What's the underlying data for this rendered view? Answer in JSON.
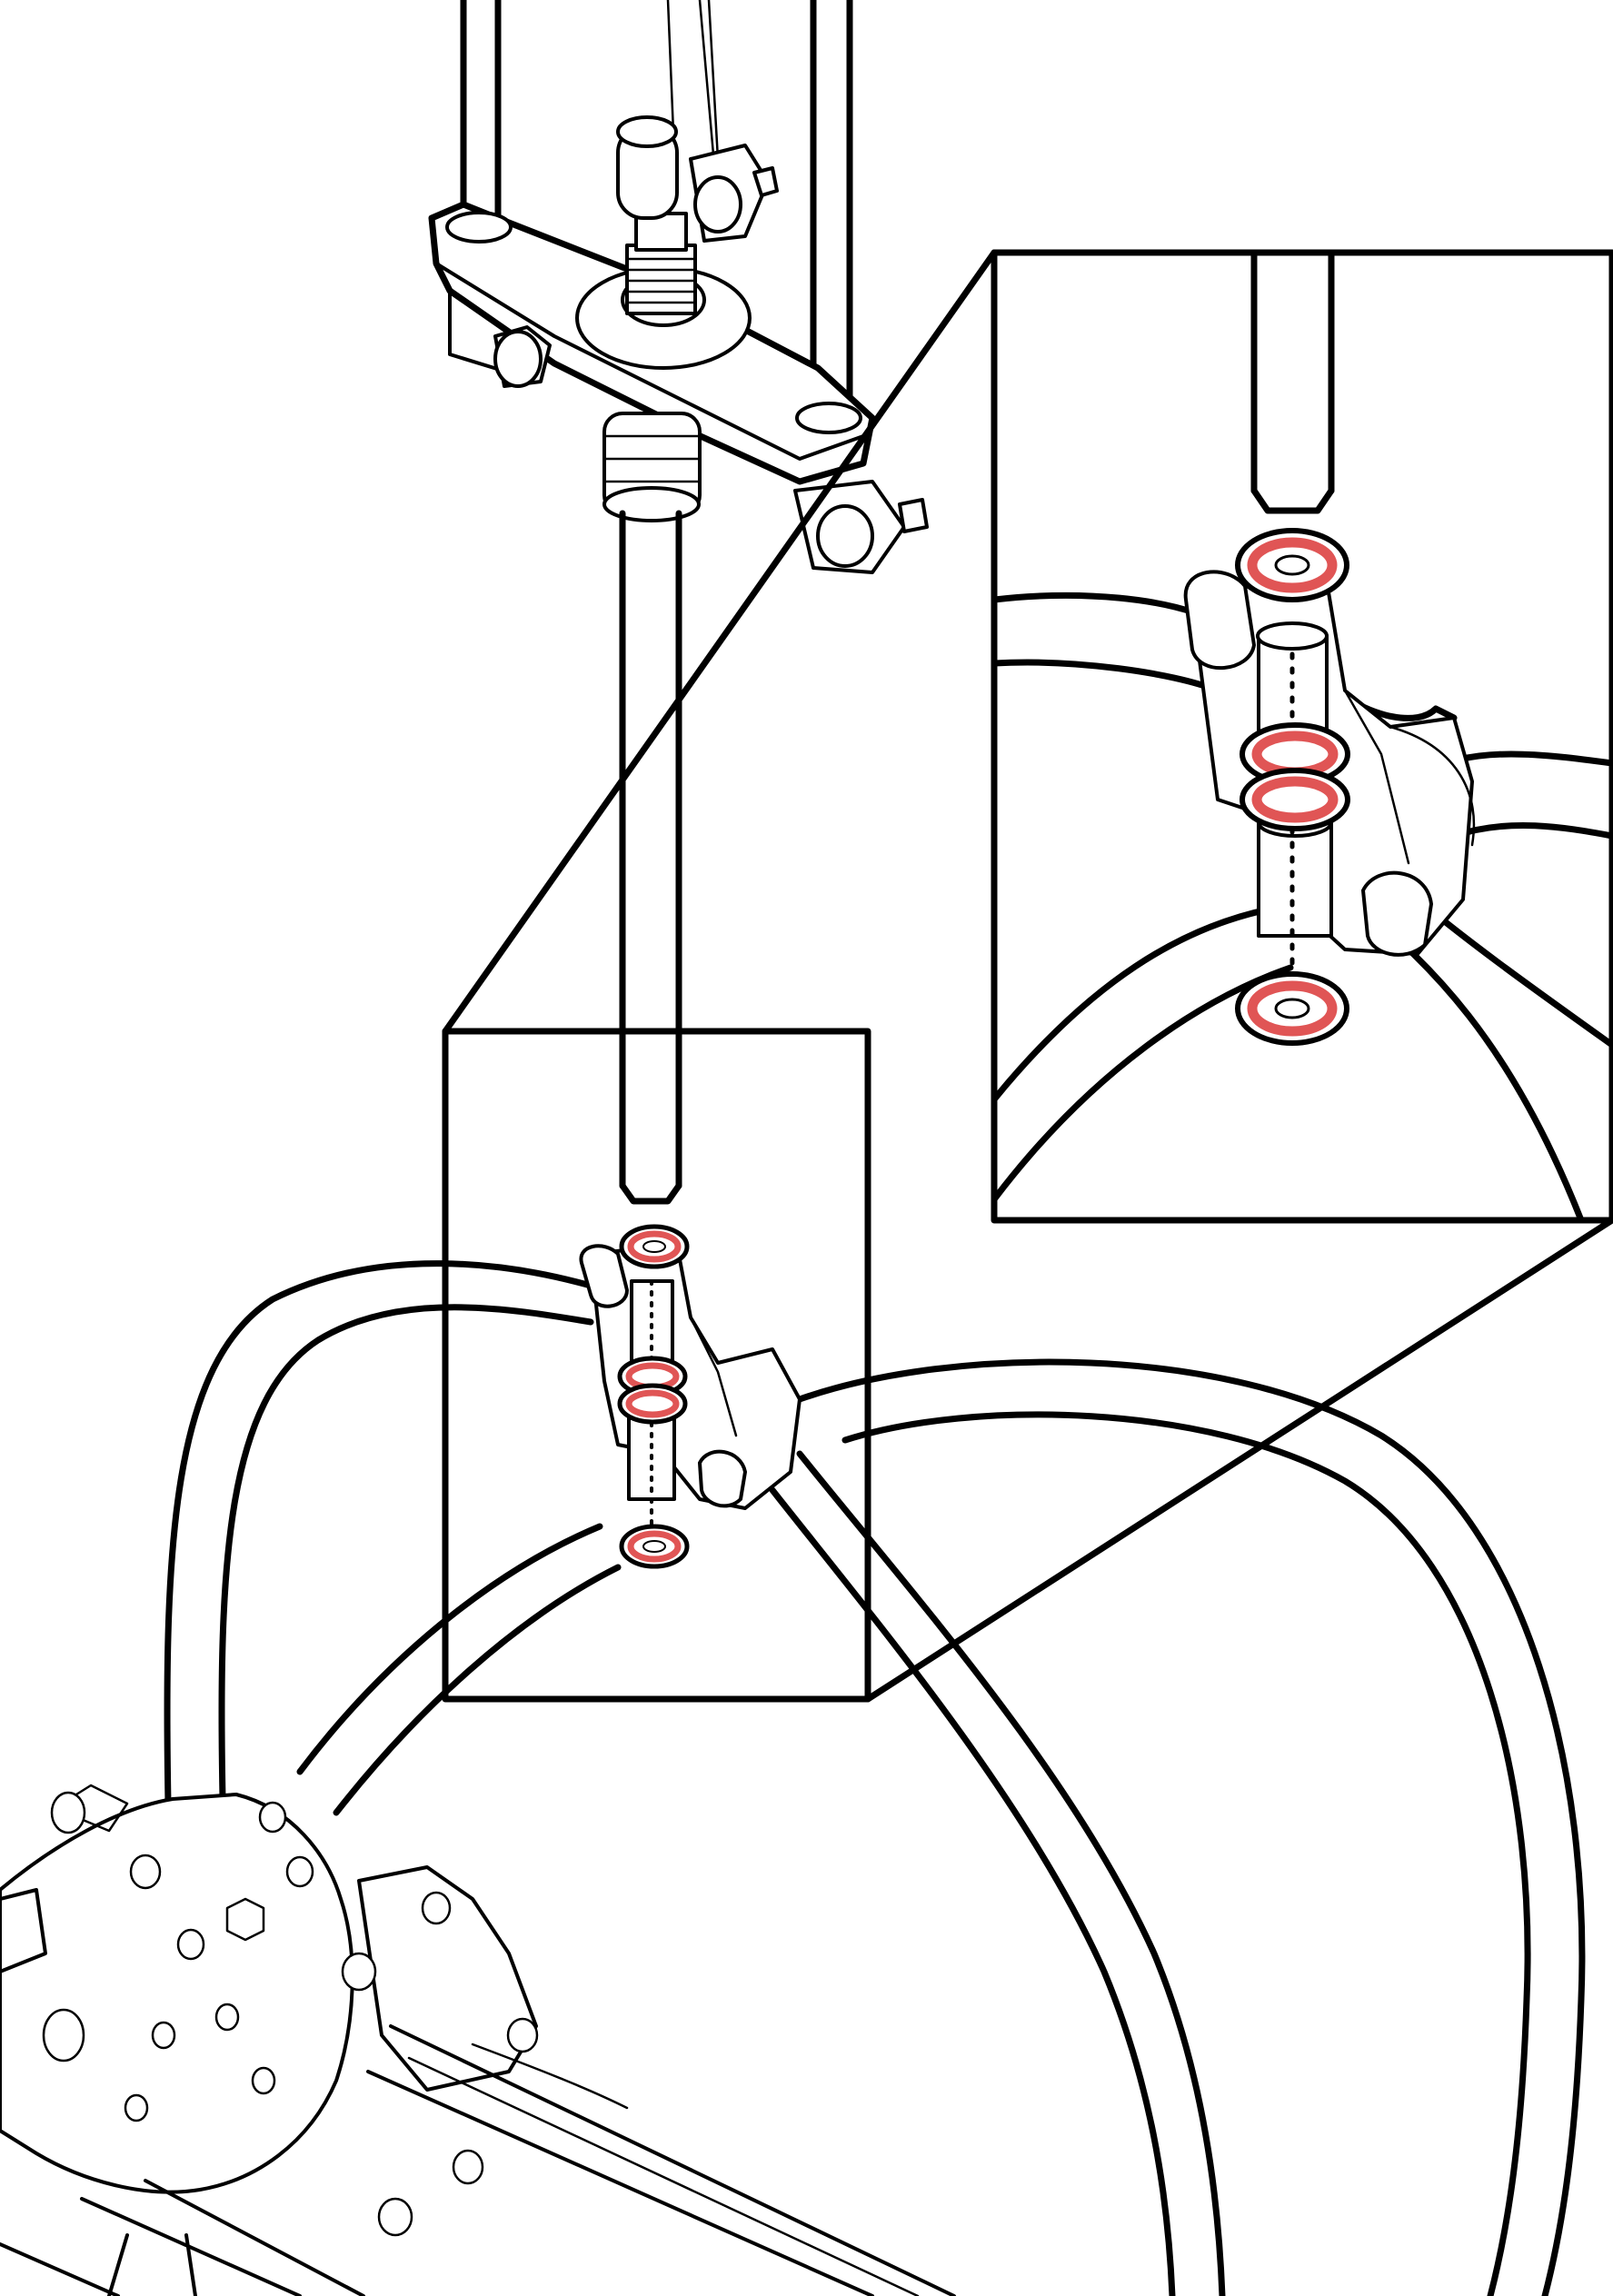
{
  "diagram": {
    "kind": "exploded assembly illustration with detail callout",
    "highlight_color": "#e05555",
    "line_color": "#000000",
    "background_color": "#ffffff",
    "components": [
      "pump-housing",
      "adjuster-screw",
      "push-rod",
      "hose-clamp-bracket",
      "sealing-washer",
      "drain-hose",
      "float-assembly",
      "detail-frame",
      "magnified-inset"
    ],
    "highlighted_parts": [
      "sealing-washer",
      "sealing-washer",
      "sealing-washer",
      "sealing-washer"
    ]
  }
}
